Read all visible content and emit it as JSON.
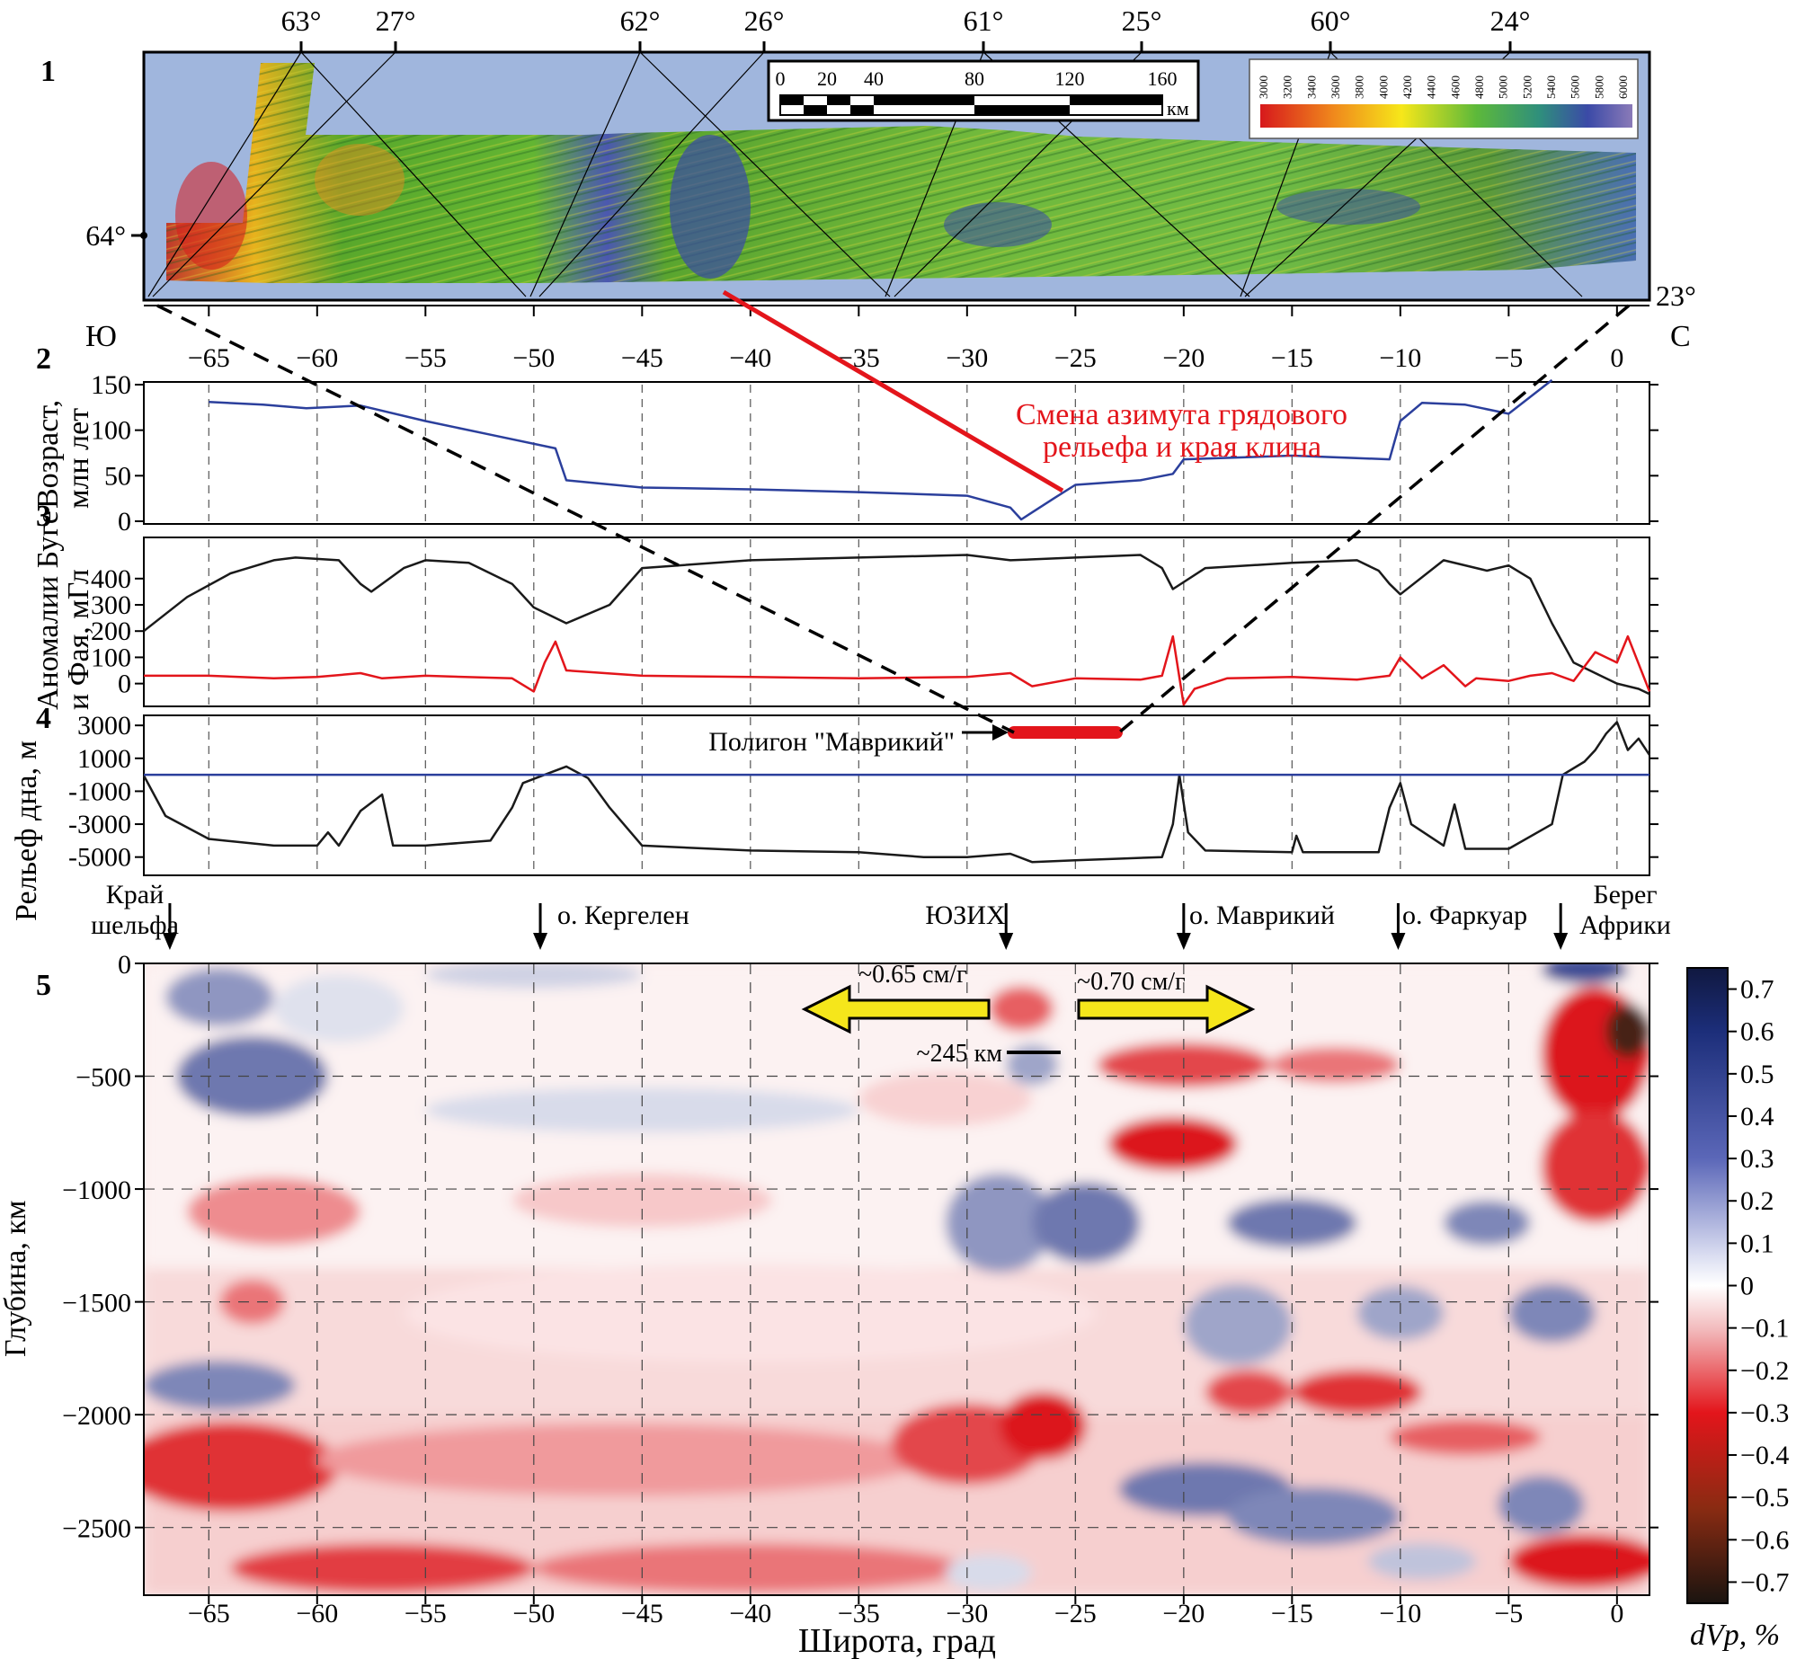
{
  "figure": {
    "panel_numbers": [
      "1",
      "2",
      "3",
      "4",
      "5"
    ],
    "lat_axis_ticks": [
      -65,
      -60,
      -55,
      -50,
      -45,
      -40,
      -35,
      -30,
      -25,
      -20,
      -15,
      -10,
      -5,
      0
    ],
    "lat_axis_tick_labels": [
      "−65",
      "−60",
      "−55",
      "−50",
      "−45",
      "−40",
      "−35",
      "−30",
      "−25",
      "−20",
      "−15",
      "−10",
      "−5",
      "0"
    ],
    "x_range": [
      -68,
      1.5
    ],
    "south_label": "Ю",
    "north_label": "С",
    "x_axis_title": "Широта, град"
  },
  "map_panel": {
    "top_ticks": [
      "63°",
      "27°",
      "62°",
      "26°",
      "61°",
      "25°",
      "60°",
      "24°"
    ],
    "left_tick": "64°",
    "right_tick": "23°",
    "scale_bar_labels": [
      "0",
      "20",
      "40",
      "80",
      "120",
      "160"
    ],
    "scale_bar_unit": "км",
    "colorbar_labels": [
      "3000",
      "3200",
      "3400",
      "3600",
      "3800",
      "4000",
      "4200",
      "4400",
      "4600",
      "4800",
      "5000",
      "5200",
      "5400",
      "5600",
      "5800",
      "6000"
    ]
  },
  "annotations": {
    "azimuth_change": [
      "Смена азимута грядового",
      "рельефа и края клина"
    ],
    "polygon_label": "Полигон \"Маврикий\"",
    "markers": [
      {
        "lines": [
          "Край",
          "шельфа"
        ],
        "lat": -66.8
      },
      {
        "lines": [
          "о. Кергелен"
        ],
        "lat": -49.7
      },
      {
        "lines": [
          "ЮЗИХ"
        ],
        "lat": -28.2
      },
      {
        "lines": [
          "о. Маврикий"
        ],
        "lat": -20.0
      },
      {
        "lines": [
          "о. Фаркуар"
        ],
        "lat": -10.1
      },
      {
        "lines": [
          "Берег",
          "Африки"
        ],
        "lat": -2.6
      }
    ],
    "spreading_left": "~0.65 см/г",
    "spreading_right": "~0.70 см/г",
    "depth_mark": "~245 км"
  },
  "chart_data": [
    {
      "type": "line",
      "panel": "2",
      "ylabel": [
        "Возраст,",
        "млн лет"
      ],
      "ylim": [
        0,
        150
      ],
      "yticks": [
        0,
        50,
        100,
        150
      ],
      "series": [
        {
          "color": "#2b3f9c",
          "x": [
            -65,
            -62.5,
            -60.5,
            -58,
            -55,
            -52,
            -49,
            -48.5,
            -45,
            -40,
            -35,
            -30,
            -28,
            -27.5,
            -26,
            -25,
            -22,
            -20.5,
            -20,
            -15,
            -10.5,
            -10,
            -9,
            -7,
            -5,
            -3
          ],
          "y": [
            131,
            128,
            124,
            127,
            110,
            95,
            80,
            45,
            37,
            35,
            32,
            28,
            15,
            2,
            25,
            40,
            45,
            52,
            68,
            72,
            68,
            110,
            130,
            128,
            118,
            155
          ]
        }
      ]
    },
    {
      "type": "line",
      "panel": "3",
      "ylabel": [
        "Аномалии Буге",
        "и Фая, мГл"
      ],
      "ylim": [
        -80,
        550
      ],
      "yticks": [
        0,
        100,
        200,
        300,
        400
      ],
      "series": [
        {
          "color": "#1a1a1a",
          "x": [
            -68,
            -66,
            -64,
            -62,
            -61,
            -59,
            -58,
            -57.5,
            -56,
            -55,
            -53,
            -51,
            -50,
            -48.5,
            -46.5,
            -45,
            -40,
            -35,
            -30,
            -28,
            -25,
            -22,
            -21,
            -20.5,
            -19,
            -15,
            -12,
            -11,
            -10.5,
            -10,
            -8,
            -6,
            -5,
            -4,
            -3,
            -2,
            -1,
            0,
            1,
            1.5
          ],
          "y": [
            200,
            330,
            420,
            470,
            480,
            470,
            380,
            350,
            440,
            470,
            460,
            380,
            290,
            230,
            300,
            440,
            470,
            480,
            490,
            470,
            480,
            490,
            440,
            360,
            440,
            460,
            470,
            430,
            380,
            340,
            470,
            430,
            450,
            400,
            230,
            80,
            40,
            0,
            -20,
            -40
          ]
        },
        {
          "color": "#e3151b",
          "x": [
            -68,
            -65,
            -62,
            -60,
            -58,
            -57,
            -55,
            -51,
            -50,
            -49.5,
            -49,
            -48.5,
            -45,
            -40,
            -35,
            -30,
            -28,
            -27,
            -25,
            -22,
            -21,
            -20.5,
            -20,
            -19.5,
            -18,
            -15,
            -12,
            -10.5,
            -10,
            -9,
            -8,
            -7,
            -6.5,
            -5,
            -4,
            -3,
            -2,
            -1,
            0,
            0.5,
            1.5
          ],
          "y": [
            30,
            30,
            20,
            25,
            40,
            20,
            30,
            20,
            -30,
            80,
            160,
            50,
            30,
            25,
            20,
            25,
            40,
            -10,
            20,
            15,
            30,
            180,
            -80,
            -20,
            20,
            25,
            15,
            30,
            100,
            20,
            70,
            -10,
            20,
            10,
            30,
            40,
            10,
            120,
            80,
            180,
            -30
          ]
        }
      ]
    },
    {
      "type": "line",
      "panel": "4",
      "ylabel": [
        "Рельеф дна, м"
      ],
      "ylim": [
        -6000,
        3500
      ],
      "yticks": [
        -5000,
        -3000,
        -1000,
        1000,
        3000
      ],
      "series": [
        {
          "color": "#1a1a1a",
          "x": [
            -68,
            -67,
            -65,
            -62,
            -60,
            -59.5,
            -59,
            -58,
            -57,
            -56.5,
            -55,
            -52,
            -51,
            -50.5,
            -49.5,
            -48.5,
            -47.5,
            -46.5,
            -45,
            -40,
            -35,
            -32,
            -30,
            -28,
            -27,
            -25,
            -23,
            -21,
            -20.5,
            -20.2,
            -19.8,
            -19,
            -15,
            -14.8,
            -14.5,
            -11,
            -10.5,
            -10,
            -9.5,
            -8,
            -7.5,
            -7,
            -5,
            -3,
            -2.5,
            -1.5,
            -1,
            -0.5,
            0,
            0.5,
            1,
            1.5
          ],
          "y": [
            -50,
            -2500,
            -3900,
            -4300,
            -4300,
            -3500,
            -4300,
            -2200,
            -1200,
            -4300,
            -4300,
            -4000,
            -2000,
            -500,
            0,
            500,
            -200,
            -2000,
            -4300,
            -4600,
            -4700,
            -5000,
            -5000,
            -4800,
            -5300,
            -5200,
            -5100,
            -5000,
            -3000,
            0,
            -3500,
            -4600,
            -4700,
            -3700,
            -4700,
            -4700,
            -2000,
            -500,
            -3000,
            -4300,
            -1800,
            -4500,
            -4500,
            -3000,
            0,
            800,
            1500,
            2500,
            3200,
            1500,
            2200,
            1200
          ]
        },
        {
          "color": "#2b3f9c",
          "x": [
            -68,
            1.5
          ],
          "y": [
            0,
            0
          ]
        }
      ]
    },
    {
      "type": "heatmap",
      "panel": "5",
      "xlabel": "Широта, град",
      "ylabel": "Глубина, км",
      "ylim": [
        -2800,
        0
      ],
      "yticks": [
        -2500,
        -2000,
        -1500,
        -1000,
        -500,
        0
      ],
      "ytick_labels": [
        "−2500",
        "−2000",
        "−1500",
        "−1000",
        "−500",
        "0"
      ],
      "colorbar_title": "dVp, %",
      "colorbar_ticks": [
        0.7,
        0.6,
        0.5,
        0.4,
        0.3,
        0.2,
        0.1,
        0,
        -0.1,
        -0.2,
        -0.3,
        -0.4,
        -0.5,
        -0.6,
        -0.7
      ],
      "colorbar_tick_labels": [
        "0.7",
        "0.6",
        "0.5",
        "0.4",
        "0.3",
        "0.2",
        "0.1",
        "0",
        "−0.1",
        "−0.2",
        "−0.3",
        "−0.4",
        "−0.5",
        "−0.6",
        "−0.7"
      ],
      "colorbar_range": [
        -0.75,
        0.75
      ],
      "blobs": [
        {
          "x": -64.5,
          "y": -150,
          "rx": 2.5,
          "ry": 130,
          "v": 0.35
        },
        {
          "x": -63,
          "y": -500,
          "rx": 3.5,
          "ry": 180,
          "v": 0.45
        },
        {
          "x": -59,
          "y": -200,
          "rx": 3,
          "ry": 150,
          "v": 0.1
        },
        {
          "x": -50,
          "y": -50,
          "rx": 5,
          "ry": 60,
          "v": 0.15
        },
        {
          "x": -45,
          "y": -650,
          "rx": 10,
          "ry": 100,
          "v": 0.12
        },
        {
          "x": -62,
          "y": -1100,
          "rx": 4,
          "ry": 150,
          "v": -0.25
        },
        {
          "x": -45,
          "y": -1050,
          "rx": 6,
          "ry": 120,
          "v": -0.12
        },
        {
          "x": -63,
          "y": -1500,
          "rx": 1.5,
          "ry": 100,
          "v": -0.3
        },
        {
          "x": -64.5,
          "y": -1870,
          "rx": 3.5,
          "ry": 110,
          "v": 0.4
        },
        {
          "x": -64,
          "y": -2230,
          "rx": 5,
          "ry": 200,
          "v": -0.45
        },
        {
          "x": -46,
          "y": -2200,
          "rx": 14,
          "ry": 160,
          "v": -0.22
        },
        {
          "x": -40,
          "y": -1550,
          "rx": 16,
          "ry": 220,
          "v": -0.06
        },
        {
          "x": -57,
          "y": -2680,
          "rx": 7,
          "ry": 110,
          "v": -0.42
        },
        {
          "x": -40,
          "y": -2680,
          "rx": 10,
          "ry": 110,
          "v": -0.3
        },
        {
          "x": -30,
          "y": -2130,
          "rx": 3.5,
          "ry": 180,
          "v": -0.4
        },
        {
          "x": -26.5,
          "y": -2050,
          "rx": 2,
          "ry": 150,
          "v": -0.5
        },
        {
          "x": -29,
          "y": -2700,
          "rx": 2,
          "ry": 80,
          "v": 0.12
        },
        {
          "x": -27.5,
          "y": -200,
          "rx": 1.5,
          "ry": 100,
          "v": -0.35
        },
        {
          "x": -27,
          "y": -450,
          "rx": 1.2,
          "ry": 90,
          "v": 0.3
        },
        {
          "x": -31,
          "y": -600,
          "rx": 4,
          "ry": 120,
          "v": -0.1
        },
        {
          "x": -28.5,
          "y": -1150,
          "rx": 2.5,
          "ry": 220,
          "v": 0.35
        },
        {
          "x": -24.5,
          "y": -1150,
          "rx": 2.5,
          "ry": 180,
          "v": 0.45
        },
        {
          "x": -20,
          "y": -450,
          "rx": 4,
          "ry": 100,
          "v": -0.4
        },
        {
          "x": -20.5,
          "y": -800,
          "rx": 3,
          "ry": 120,
          "v": -0.5
        },
        {
          "x": -13,
          "y": -450,
          "rx": 3,
          "ry": 80,
          "v": -0.3
        },
        {
          "x": -15,
          "y": -1150,
          "rx": 3,
          "ry": 110,
          "v": 0.45
        },
        {
          "x": -6,
          "y": -1150,
          "rx": 2,
          "ry": 100,
          "v": 0.4
        },
        {
          "x": -17.5,
          "y": -1600,
          "rx": 2.5,
          "ry": 180,
          "v": 0.3
        },
        {
          "x": -10,
          "y": -1550,
          "rx": 2,
          "ry": 120,
          "v": 0.3
        },
        {
          "x": -3,
          "y": -1550,
          "rx": 2,
          "ry": 130,
          "v": 0.4
        },
        {
          "x": -17,
          "y": -1900,
          "rx": 2,
          "ry": 100,
          "v": -0.4
        },
        {
          "x": -12,
          "y": -1900,
          "rx": 3,
          "ry": 100,
          "v": -0.45
        },
        {
          "x": -7,
          "y": -2100,
          "rx": 3.5,
          "ry": 80,
          "v": -0.35
        },
        {
          "x": -19,
          "y": -2330,
          "rx": 4,
          "ry": 120,
          "v": 0.45
        },
        {
          "x": -14,
          "y": -2450,
          "rx": 4,
          "ry": 130,
          "v": 0.4
        },
        {
          "x": -3.5,
          "y": -2400,
          "rx": 2,
          "ry": 130,
          "v": 0.4
        },
        {
          "x": -9,
          "y": -2650,
          "rx": 2.5,
          "ry": 80,
          "v": 0.2
        },
        {
          "x": -1.5,
          "y": -2650,
          "rx": 3.5,
          "ry": 120,
          "v": -0.55
        },
        {
          "x": -1,
          "y": -400,
          "rx": 2.5,
          "ry": 300,
          "v": -0.55
        },
        {
          "x": 0.5,
          "y": -300,
          "rx": 1,
          "ry": 120,
          "v": -0.8
        },
        {
          "x": -1,
          "y": -900,
          "rx": 2.5,
          "ry": 250,
          "v": -0.45
        },
        {
          "x": -1.5,
          "y": -30,
          "rx": 2,
          "ry": 60,
          "v": 0.6
        }
      ]
    }
  ]
}
